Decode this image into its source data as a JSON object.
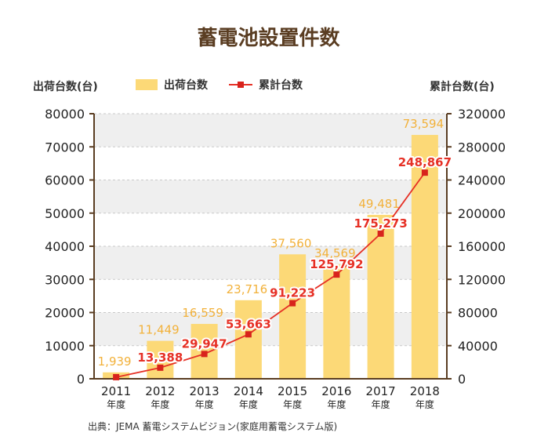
{
  "chart_data": {
    "type": "bar",
    "title": "蓄電池設置件数",
    "ylabel_left": "出荷台数(台)",
    "ylabel_right": "累計台数(台)",
    "categories": [
      "2011",
      "2012",
      "2013",
      "2014",
      "2015",
      "2016",
      "2017",
      "2018"
    ],
    "category_suffix": "年度",
    "ylim_left": [
      0,
      80000
    ],
    "yticks_left": [
      0,
      10000,
      20000,
      30000,
      40000,
      50000,
      60000,
      70000,
      80000
    ],
    "ylim_right": [
      0,
      320000
    ],
    "yticks_right": [
      0,
      40000,
      80000,
      120000,
      160000,
      200000,
      240000,
      280000,
      320000
    ],
    "series": [
      {
        "name": "出荷台数",
        "type": "bar",
        "axis": "left",
        "color": "#fcd977",
        "values": [
          1939,
          11449,
          16559,
          23716,
          37560,
          34569,
          49481,
          73594
        ],
        "labels": [
          "1,939",
          "11,449",
          "16,559",
          "23,716",
          "37,560",
          "34,569",
          "49,481",
          "73,594"
        ]
      },
      {
        "name": "累計台数",
        "type": "line",
        "axis": "right",
        "color": "#e63025",
        "values": [
          1939,
          13388,
          29947,
          53663,
          91223,
          125792,
          175273,
          248867
        ],
        "labels": [
          "",
          "13,388",
          "29,947",
          "53,663",
          "91,223",
          "125,792",
          "175,273",
          "248,867"
        ]
      }
    ],
    "grid": "banded",
    "legend": "top"
  },
  "source_note": "出典：JEMA 蓄電システムビジョン(家庭用蓄電システム版)"
}
